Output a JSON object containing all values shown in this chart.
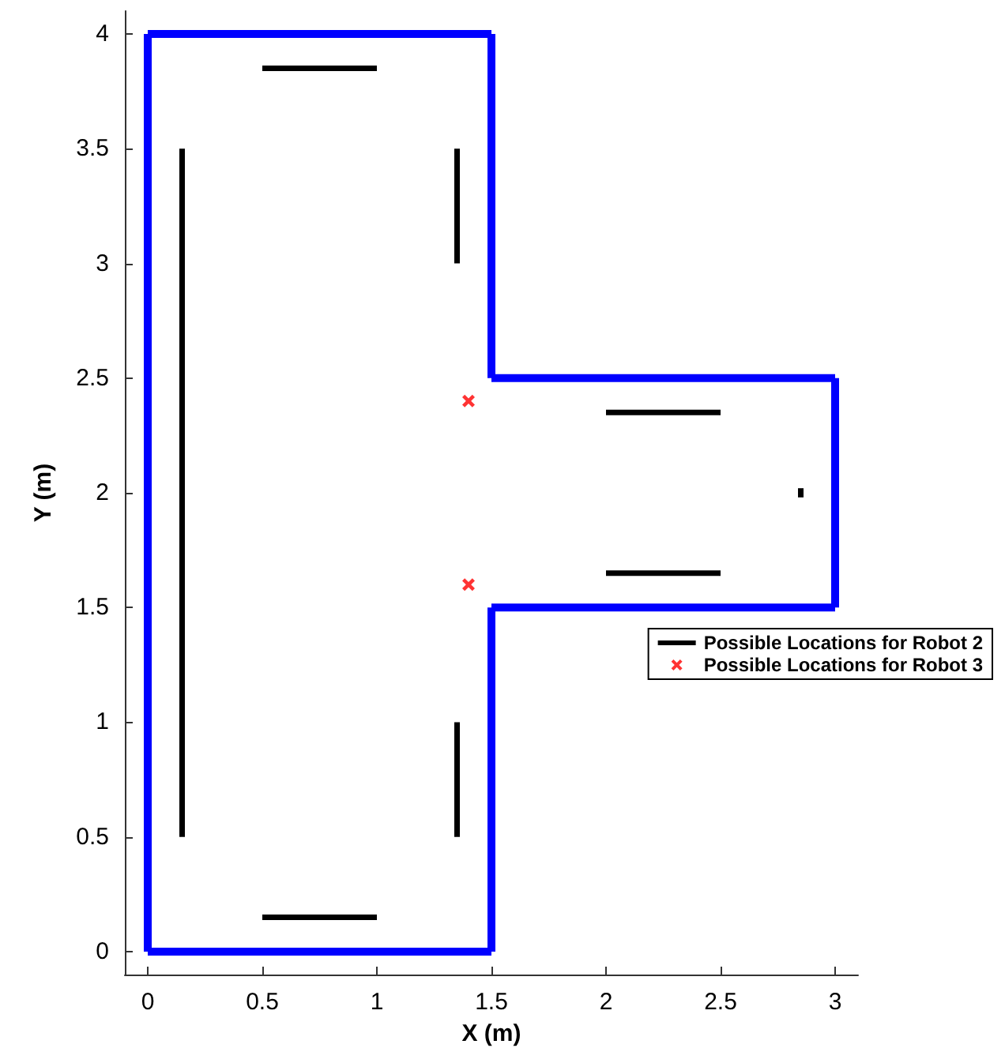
{
  "chart_data": {
    "type": "line",
    "xlabel": "X (m)",
    "ylabel": "Y (m)",
    "xlim": [
      -0.1,
      3.1
    ],
    "ylim": [
      -0.1,
      4.1
    ],
    "xticks": [
      0,
      0.5,
      1,
      1.5,
      2,
      2.5,
      3
    ],
    "yticks": [
      0,
      0.5,
      1,
      1.5,
      2,
      2.5,
      3,
      3.5,
      4
    ],
    "grid": false,
    "legend": "right",
    "line_style": "solid",
    "series": [
      {
        "color": "#0000ff",
        "marker": "none",
        "x": [
          0,
          0
        ],
        "values": [
          0,
          4
        ]
      },
      {
        "color": "#0000ff",
        "marker": "none",
        "x": [
          0,
          1.5
        ],
        "values": [
          4,
          4
        ]
      },
      {
        "color": "#0000ff",
        "marker": "none",
        "x": [
          1.5,
          1.5
        ],
        "values": [
          4,
          2.5
        ]
      },
      {
        "color": "#0000ff",
        "marker": "none",
        "x": [
          1.5,
          3
        ],
        "values": [
          2.5,
          2.5
        ]
      },
      {
        "color": "#0000ff",
        "marker": "none",
        "x": [
          3,
          3
        ],
        "values": [
          2.5,
          1.5
        ]
      },
      {
        "color": "#0000ff",
        "marker": "none",
        "x": [
          1.5,
          3
        ],
        "values": [
          1.5,
          1.5
        ]
      },
      {
        "color": "#0000ff",
        "marker": "none",
        "x": [
          1.5,
          1.5
        ],
        "values": [
          1.5,
          0
        ]
      },
      {
        "color": "#0000ff",
        "marker": "none",
        "x": [
          0,
          1.5
        ],
        "values": [
          0,
          0
        ]
      },
      {
        "name": "Possible Locations for Robot 2",
        "color": "#000000",
        "marker": "none",
        "x": [
          0.15,
          0.15
        ],
        "values": [
          0.5,
          3.5
        ]
      },
      {
        "color": "#000000",
        "marker": "none",
        "x": [
          0.5,
          1.0
        ],
        "values": [
          3.85,
          3.85
        ]
      },
      {
        "color": "#000000",
        "marker": "none",
        "x": [
          0.5,
          1.0
        ],
        "values": [
          0.15,
          0.15
        ]
      },
      {
        "color": "#000000",
        "marker": "none",
        "x": [
          1.35,
          1.35
        ],
        "values": [
          3.0,
          3.5
        ]
      },
      {
        "color": "#000000",
        "marker": "none",
        "x": [
          1.35,
          1.35
        ],
        "values": [
          0.5,
          1.0
        ]
      },
      {
        "color": "#000000",
        "marker": "none",
        "x": [
          2.0,
          2.5
        ],
        "values": [
          2.35,
          2.35
        ]
      },
      {
        "color": "#000000",
        "marker": "none",
        "x": [
          2.0,
          2.5
        ],
        "values": [
          1.65,
          1.65
        ]
      },
      {
        "color": "#000000",
        "marker": "none",
        "x": [
          2.85,
          2.85
        ],
        "values": [
          1.98,
          2.02
        ]
      },
      {
        "name": "Possible Locations for Robot 3",
        "type": "scatter",
        "color": "#ff0000",
        "marker": "cross",
        "x": [
          1.4,
          1.4
        ],
        "values": [
          2.4,
          1.6
        ]
      }
    ]
  }
}
